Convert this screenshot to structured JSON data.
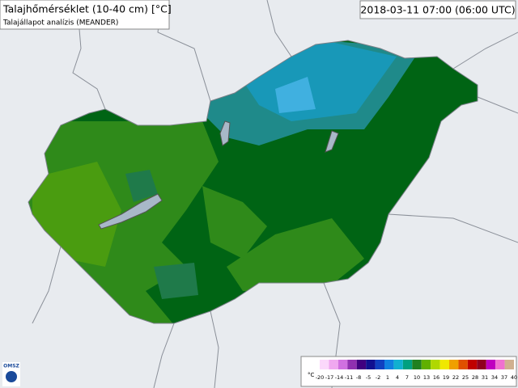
{
  "header": {
    "title": "Talajhőmérséklet (10-40 cm) [°C]",
    "subtitle": "Talajállapot analízis (MEANDER)",
    "timestamp": "2018-03-11 07:00 (06:00 UTC)"
  },
  "legend": {
    "unit": "°C",
    "labels": [
      -20,
      -17,
      -14,
      -11,
      -8,
      -5,
      -2,
      1,
      4,
      7,
      10,
      13,
      16,
      19,
      22,
      25,
      28,
      31,
      34,
      37,
      40
    ],
    "colors": [
      "#fbd8fb",
      "#f0a8f0",
      "#d070e0",
      "#9030b0",
      "#400080",
      "#101090",
      "#1040c0",
      "#1080e0",
      "#10b0d0",
      "#00a080",
      "#208020",
      "#60b000",
      "#b0d800",
      "#f0e800",
      "#f0a000",
      "#e05000",
      "#c00000",
      "#900020",
      "#c000c0",
      "#f070d0",
      "#d0b090"
    ]
  },
  "logo": "OMSZ"
}
